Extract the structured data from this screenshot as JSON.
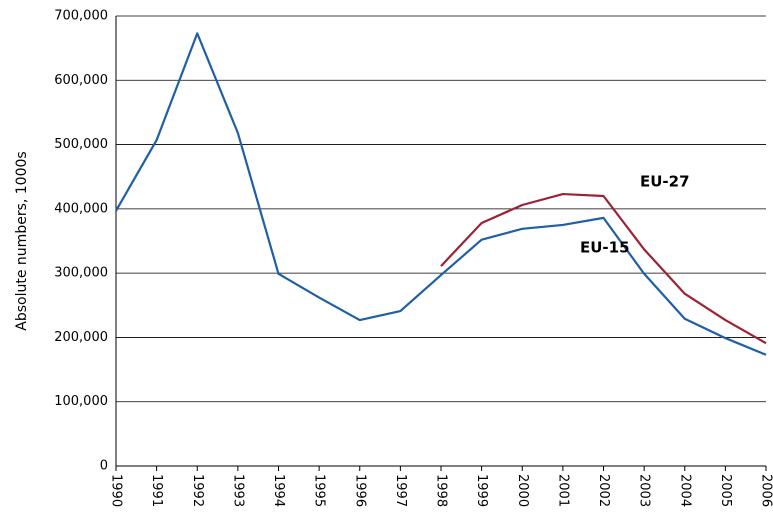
{
  "chart_data": {
    "type": "line",
    "y_label": "Absolute numbers, 1000s",
    "x": [
      1990,
      1991,
      1992,
      1993,
      1994,
      1995,
      1996,
      1997,
      1998,
      1999,
      2000,
      2001,
      2002,
      2003,
      2004,
      2005,
      2006
    ],
    "xlim": [
      1990,
      2006
    ],
    "series": [
      {
        "name": "EU-15",
        "color": "#1f5fa6",
        "values": [
          397000,
          507000,
          673000,
          518000,
          299000,
          262000,
          227000,
          241000,
          297000,
          352000,
          369000,
          375000,
          386000,
          299000,
          229000,
          199000,
          173000
        ]
      },
      {
        "name": "EU-27",
        "color": "#9b2335",
        "values": [
          null,
          null,
          null,
          null,
          null,
          null,
          null,
          null,
          311000,
          378000,
          406000,
          423000,
          420000,
          337000,
          268000,
          227000,
          191000
        ]
      }
    ],
    "ylim": [
      0,
      700000
    ],
    "yticks": [
      0,
      {
        "value": 100000,
        "label": "100,000"
      },
      {
        "value": 200000,
        "label": "200,000"
      },
      {
        "value": 300000,
        "label": "300,000"
      },
      {
        "value": 400000,
        "label": "400,000"
      },
      {
        "value": 500000,
        "label": "500,000"
      },
      {
        "value": 600000,
        "label": "600,000"
      },
      {
        "value": 700000,
        "label": "700,000"
      }
    ],
    "grid": true
  }
}
